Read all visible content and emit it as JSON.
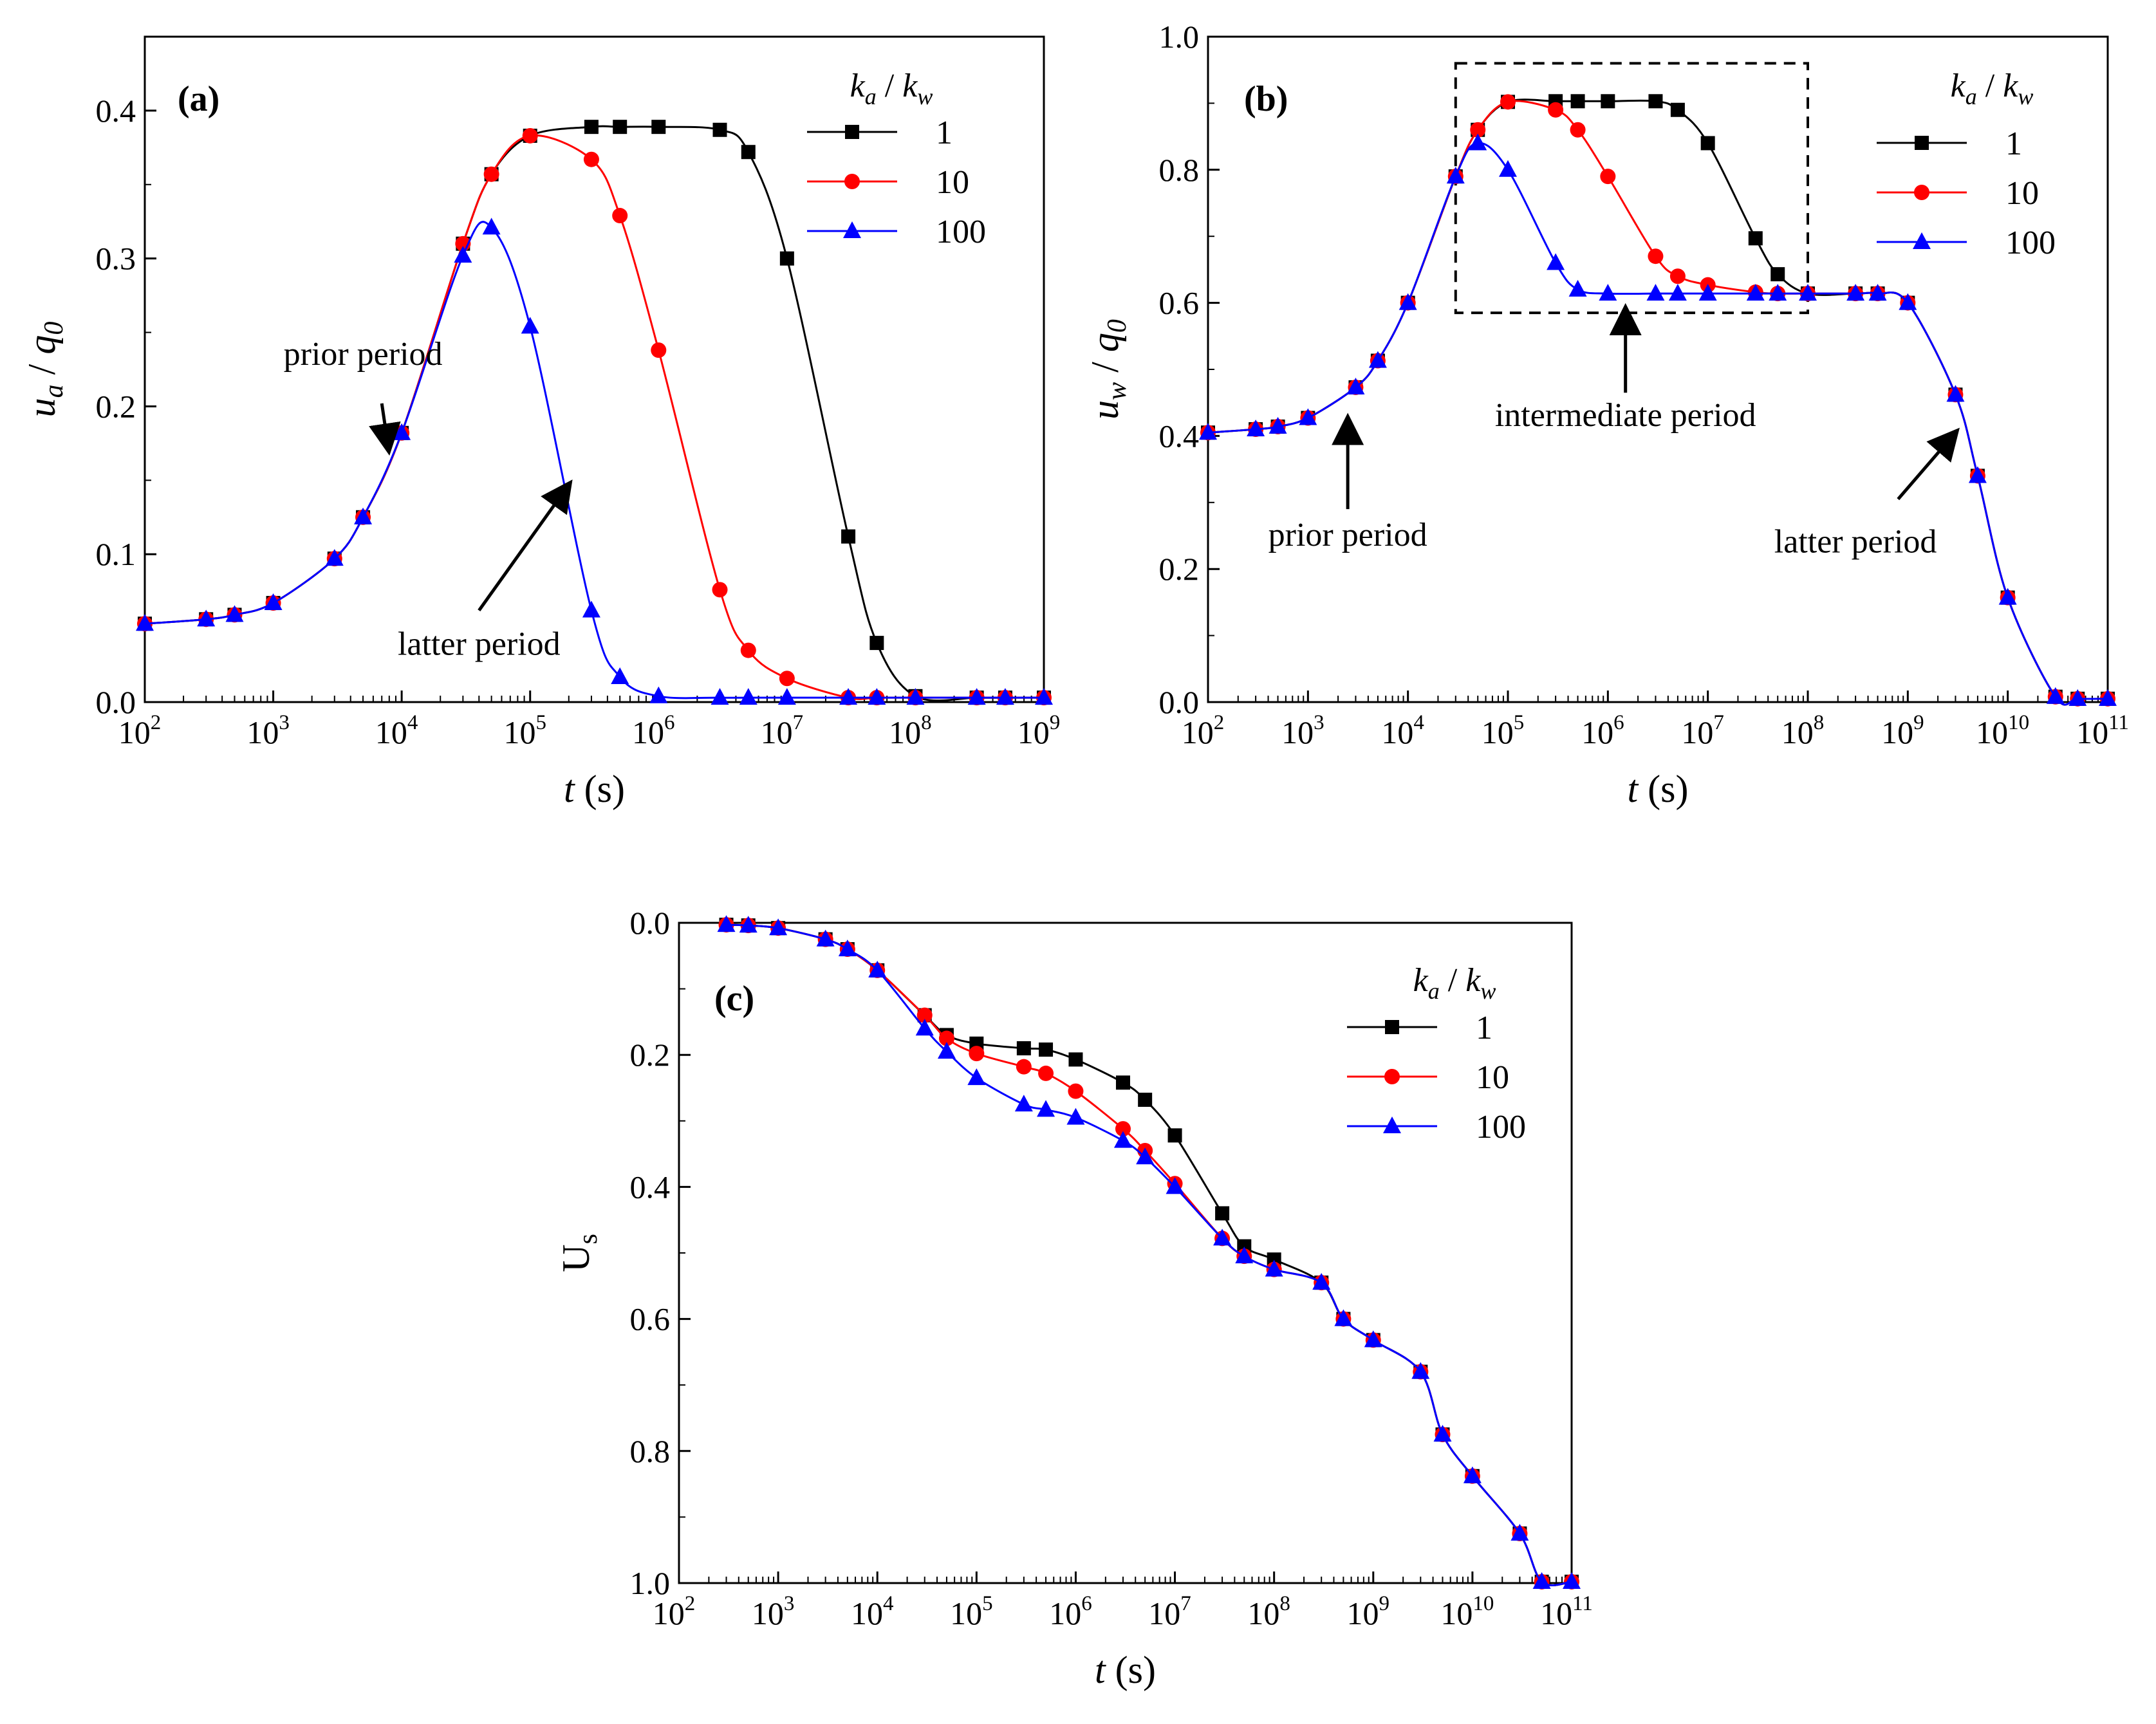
{
  "colors": {
    "series1": "#000000",
    "series2": "#ff0000",
    "series3": "#0000ff"
  },
  "legend": {
    "title_k": "k",
    "title_a": "a",
    "title_sep": " / ",
    "title_w": "w"
  },
  "chart_data": [
    {
      "id": "a",
      "type": "line",
      "panel_label": "(a)",
      "xscale": "log",
      "xlim": [
        100,
        1000000000
      ],
      "ylim": [
        0,
        0.45
      ],
      "ylabel": {
        "var": "u",
        "sub": "a",
        "sep": " / ",
        "den": "q",
        "den_sub": "0"
      },
      "xlabel": {
        "var": "t",
        "unit": " (s)"
      },
      "x_tick_exponents": [
        2,
        3,
        4,
        5,
        6,
        7,
        8,
        9
      ],
      "y_ticks": [
        "0.0",
        "0.1",
        "0.2",
        "0.3",
        "0.4"
      ],
      "series": [
        {
          "name": "1",
          "marker": "square",
          "x": [
            100,
            300,
            500,
            1000,
            3000,
            5000,
            10000,
            30000,
            50000,
            100000,
            300000,
            500000,
            1000000,
            3000000,
            5000000,
            10000000,
            30000000,
            50000000,
            100000000,
            300000000,
            500000000,
            1000000000
          ],
          "y": [
            0.053,
            0.056,
            0.059,
            0.067,
            0.097,
            0.125,
            0.182,
            0.31,
            0.357,
            0.383,
            0.389,
            0.389,
            0.389,
            0.387,
            0.372,
            0.3,
            0.112,
            0.04,
            0.004,
            0.003,
            0.003,
            0.003
          ]
        },
        {
          "name": "10",
          "marker": "circle",
          "x": [
            100,
            300,
            500,
            1000,
            3000,
            5000,
            10000,
            30000,
            50000,
            100000,
            300000,
            500000,
            1000000,
            3000000,
            5000000,
            10000000,
            30000000,
            50000000,
            100000000,
            300000000,
            500000000,
            1000000000
          ],
          "y": [
            0.053,
            0.056,
            0.059,
            0.067,
            0.097,
            0.125,
            0.182,
            0.31,
            0.357,
            0.383,
            0.367,
            0.329,
            0.238,
            0.076,
            0.035,
            0.016,
            0.003,
            0.003,
            0.003,
            0.003,
            0.003,
            0.003
          ]
        },
        {
          "name": "100",
          "marker": "triangle",
          "x": [
            100,
            300,
            500,
            1000,
            3000,
            5000,
            10000,
            30000,
            50000,
            100000,
            300000,
            500000,
            1000000,
            3000000,
            5000000,
            10000000,
            30000000,
            50000000,
            100000000,
            300000000,
            500000000,
            1000000000
          ],
          "y": [
            0.053,
            0.056,
            0.059,
            0.067,
            0.097,
            0.125,
            0.182,
            0.302,
            0.321,
            0.254,
            0.062,
            0.017,
            0.004,
            0.003,
            0.003,
            0.003,
            0.003,
            0.003,
            0.003,
            0.003,
            0.003,
            0.003
          ]
        }
      ],
      "annotations": [
        {
          "text": "prior period",
          "x": 5000,
          "y": 0.228,
          "ax": 7000,
          "ay": 0.202,
          "hx": 7900,
          "hy": 0.171
        },
        {
          "text": "latter period",
          "x": 40000,
          "y": 0.032,
          "ax": 40000,
          "ay": 0.062,
          "hx": 200000,
          "hy": 0.147
        }
      ]
    },
    {
      "id": "b",
      "type": "line",
      "panel_label": "(b)",
      "xscale": "log",
      "xlim": [
        100,
        100000000000
      ],
      "ylim": [
        0,
        1.0
      ],
      "ylabel": {
        "var": "u",
        "sub": "w",
        "sep": " / ",
        "den": "q",
        "den_sub": "0"
      },
      "xlabel": {
        "var": "t",
        "unit": " (s)"
      },
      "x_tick_exponents": [
        2,
        3,
        4,
        5,
        6,
        7,
        8,
        9,
        10,
        11
      ],
      "y_ticks": [
        "0.0",
        "0.2",
        "0.4",
        "0.6",
        "0.8",
        "1.0"
      ],
      "series": [
        {
          "name": "1",
          "marker": "square",
          "x": [
            100,
            300,
            500,
            1000,
            3000,
            5000,
            10000,
            30000,
            50000,
            100000,
            300000,
            500000,
            1000000,
            3000000,
            5000000,
            10000000,
            30000000,
            50000000,
            100000000,
            300000000,
            500000000,
            1000000000,
            3000000000,
            5000000000,
            10000000000,
            30000000000,
            50000000000,
            100000000000
          ],
          "y": [
            0.405,
            0.41,
            0.414,
            0.427,
            0.473,
            0.513,
            0.6,
            0.79,
            0.86,
            0.902,
            0.903,
            0.903,
            0.903,
            0.903,
            0.89,
            0.84,
            0.697,
            0.643,
            0.614,
            0.614,
            0.614,
            0.6,
            0.462,
            0.34,
            0.157,
            0.008,
            0.005,
            0.005
          ]
        },
        {
          "name": "10",
          "marker": "circle",
          "x": [
            100,
            300,
            500,
            1000,
            3000,
            5000,
            10000,
            30000,
            50000,
            100000,
            300000,
            500000,
            1000000,
            3000000,
            5000000,
            10000000,
            30000000,
            50000000,
            100000000,
            300000000,
            500000000,
            1000000000,
            3000000000,
            5000000000,
            10000000000,
            30000000000,
            50000000000,
            100000000000
          ],
          "y": [
            0.405,
            0.41,
            0.414,
            0.427,
            0.473,
            0.513,
            0.6,
            0.79,
            0.86,
            0.902,
            0.89,
            0.86,
            0.79,
            0.67,
            0.64,
            0.627,
            0.616,
            0.614,
            0.614,
            0.614,
            0.614,
            0.6,
            0.462,
            0.34,
            0.157,
            0.008,
            0.005,
            0.005
          ]
        },
        {
          "name": "100",
          "marker": "triangle",
          "x": [
            100,
            300,
            500,
            1000,
            3000,
            5000,
            10000,
            30000,
            50000,
            100000,
            300000,
            500000,
            1000000,
            3000000,
            5000000,
            10000000,
            30000000,
            50000000,
            100000000,
            300000000,
            500000000,
            1000000000,
            3000000000,
            5000000000,
            10000000000,
            30000000000,
            50000000000,
            100000000000
          ],
          "y": [
            0.405,
            0.41,
            0.414,
            0.427,
            0.473,
            0.513,
            0.6,
            0.79,
            0.84,
            0.8,
            0.66,
            0.62,
            0.614,
            0.614,
            0.614,
            0.614,
            0.614,
            0.614,
            0.614,
            0.614,
            0.614,
            0.6,
            0.462,
            0.34,
            0.157,
            0.008,
            0.005,
            0.005
          ]
        }
      ],
      "dashed_box": {
        "x0": 30000,
        "x1": 100000000,
        "y0": 0.585,
        "y1": 0.96
      },
      "annotations": [
        {
          "text": "prior period",
          "x": 2500,
          "y": 0.235,
          "ax": 2500,
          "ay": 0.29,
          "hx": 2500,
          "hy": 0.425
        },
        {
          "text": "intermediate period",
          "x": 1500000,
          "y": 0.415,
          "ax": 1500000,
          "ay": 0.465,
          "hx": 1500000,
          "hy": 0.59
        },
        {
          "text": "latter period",
          "x": 300000000,
          "y": 0.225,
          "ax": 800000000,
          "ay": 0.305,
          "hx": 3000000000,
          "hy": 0.405
        }
      ]
    },
    {
      "id": "c",
      "type": "line",
      "panel_label": "(c)",
      "xscale": "log",
      "xlim": [
        100,
        100000000000
      ],
      "ylim": [
        0,
        1.0
      ],
      "y_inverted": true,
      "ylabel": {
        "var": "U",
        "sub": "s"
      },
      "xlabel": {
        "var": "t",
        "unit": " (s)"
      },
      "x_tick_exponents": [
        2,
        3,
        4,
        5,
        6,
        7,
        8,
        9,
        10,
        11
      ],
      "y_ticks": [
        "0.0",
        "0.2",
        "0.4",
        "0.6",
        "0.8",
        "1.0"
      ],
      "series": [
        {
          "name": "1",
          "marker": "square",
          "x": [
            300,
            500,
            1000,
            3000,
            5000,
            10000,
            30000,
            50000,
            100000,
            300000,
            500000,
            1000000,
            3000000,
            5000000,
            10000000,
            30000000,
            50000000,
            100000000,
            300000000,
            500000000,
            1000000000,
            3000000000,
            5000000000,
            10000000000,
            30000000000,
            50000000000,
            100000000000
          ],
          "y": [
            0.003,
            0.004,
            0.008,
            0.025,
            0.04,
            0.072,
            0.14,
            0.17,
            0.183,
            0.19,
            0.192,
            0.207,
            0.242,
            0.268,
            0.322,
            0.44,
            0.49,
            0.51,
            0.545,
            0.6,
            0.632,
            0.68,
            0.775,
            0.838,
            0.925,
            0.998,
            0.998
          ]
        },
        {
          "name": "10",
          "marker": "circle",
          "x": [
            300,
            500,
            1000,
            3000,
            5000,
            10000,
            30000,
            50000,
            100000,
            300000,
            500000,
            1000000,
            3000000,
            5000000,
            10000000,
            30000000,
            50000000,
            100000000,
            300000000,
            500000000,
            1000000000,
            3000000000,
            5000000000,
            10000000000,
            30000000000,
            50000000000,
            100000000000
          ],
          "y": [
            0.003,
            0.004,
            0.008,
            0.025,
            0.04,
            0.072,
            0.14,
            0.175,
            0.198,
            0.218,
            0.228,
            0.255,
            0.312,
            0.345,
            0.395,
            0.478,
            0.505,
            0.525,
            0.545,
            0.6,
            0.632,
            0.68,
            0.775,
            0.838,
            0.925,
            0.998,
            0.998
          ]
        },
        {
          "name": "100",
          "marker": "triangle",
          "x": [
            300,
            500,
            1000,
            3000,
            5000,
            10000,
            30000,
            50000,
            100000,
            300000,
            500000,
            1000000,
            3000000,
            5000000,
            10000000,
            30000000,
            50000000,
            100000000,
            300000000,
            500000000,
            1000000000,
            3000000000,
            5000000000,
            10000000000,
            30000000000,
            50000000000,
            100000000000
          ],
          "y": [
            0.003,
            0.004,
            0.008,
            0.025,
            0.04,
            0.072,
            0.16,
            0.195,
            0.235,
            0.275,
            0.283,
            0.295,
            0.33,
            0.355,
            0.4,
            0.478,
            0.505,
            0.525,
            0.545,
            0.6,
            0.632,
            0.68,
            0.775,
            0.838,
            0.925,
            0.998,
            0.998
          ]
        }
      ],
      "annotations": []
    }
  ]
}
